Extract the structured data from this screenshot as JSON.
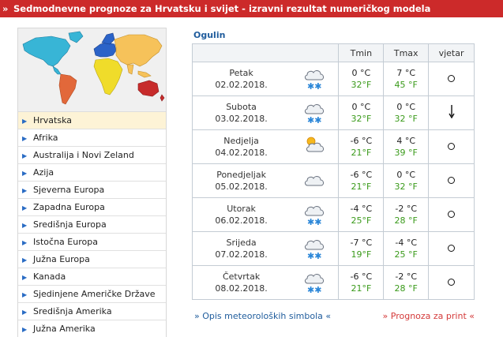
{
  "banner": {
    "marker": "»",
    "title": "Sedmodnevne prognoze za Hrvatsku i svijet - izravni rezultat numeričkog modela"
  },
  "colors": {
    "banner": "#cc2a2a",
    "link": "#1f5c9c",
    "fahrenheit": "#3a9a1a",
    "print_link": "#d43a3a",
    "active_menu": "#fdf3d6"
  },
  "sidebar": {
    "map_icon": "world-continents-map",
    "items": [
      {
        "label": "Hrvatska",
        "active": true
      },
      {
        "label": "Afrika"
      },
      {
        "label": "Australija i Novi Zeland"
      },
      {
        "label": "Azija"
      },
      {
        "label": "Sjeverna Europa"
      },
      {
        "label": "Zapadna Europa"
      },
      {
        "label": "Središnja Europa"
      },
      {
        "label": "Istočna Europa"
      },
      {
        "label": "Južna Europa"
      },
      {
        "label": "Kanada"
      },
      {
        "label": "Sjedinjene Američke Države"
      },
      {
        "label": "Središnja Amerika"
      },
      {
        "label": "Južna Amerika"
      }
    ]
  },
  "city": "Ogulin",
  "table": {
    "headers": {
      "tmin": "Tmin",
      "tmax": "Tmax",
      "wind": "vjetar"
    },
    "rows": [
      {
        "day": "Petak",
        "date": "02.02.2018.",
        "icon": "snow-cloud-icon",
        "tmin_c": "0 °C",
        "tmin_f": "32°F",
        "tmax_c": "7 °C",
        "tmax_f": "45 °F",
        "wind": "calm-circle-icon"
      },
      {
        "day": "Subota",
        "date": "03.02.2018.",
        "icon": "snow-cloud-icon",
        "tmin_c": "0 °C",
        "tmin_f": "32°F",
        "tmax_c": "0 °C",
        "tmax_f": "32 °F",
        "wind": "wind-arrow-south-icon"
      },
      {
        "day": "Nedjelja",
        "date": "04.02.2018.",
        "icon": "sun-cloud-icon",
        "tmin_c": "-6 °C",
        "tmin_f": "21°F",
        "tmax_c": "4 °C",
        "tmax_f": "39 °F",
        "wind": "calm-circle-icon"
      },
      {
        "day": "Ponedjeljak",
        "date": "05.02.2018.",
        "icon": "cloud-icon",
        "tmin_c": "-6 °C",
        "tmin_f": "21°F",
        "tmax_c": "0 °C",
        "tmax_f": "32 °F",
        "wind": "calm-circle-icon"
      },
      {
        "day": "Utorak",
        "date": "06.02.2018.",
        "icon": "snow-cloud-icon",
        "tmin_c": "-4 °C",
        "tmin_f": "25°F",
        "tmax_c": "-2 °C",
        "tmax_f": "28 °F",
        "wind": "calm-circle-icon"
      },
      {
        "day": "Srijeda",
        "date": "07.02.2018.",
        "icon": "snow-cloud-icon",
        "tmin_c": "-7 °C",
        "tmin_f": "19°F",
        "tmax_c": "-4 °C",
        "tmax_f": "25 °F",
        "wind": "calm-circle-icon"
      },
      {
        "day": "Četvrtak",
        "date": "08.02.2018.",
        "icon": "snow-cloud-icon",
        "tmin_c": "-6 °C",
        "tmin_f": "21°F",
        "tmax_c": "-2 °C",
        "tmax_f": "28 °F",
        "wind": "calm-circle-icon"
      }
    ]
  },
  "links": {
    "symbols": "» Opis meteoroloških simbola «",
    "print": "» Prognoza za print «"
  }
}
